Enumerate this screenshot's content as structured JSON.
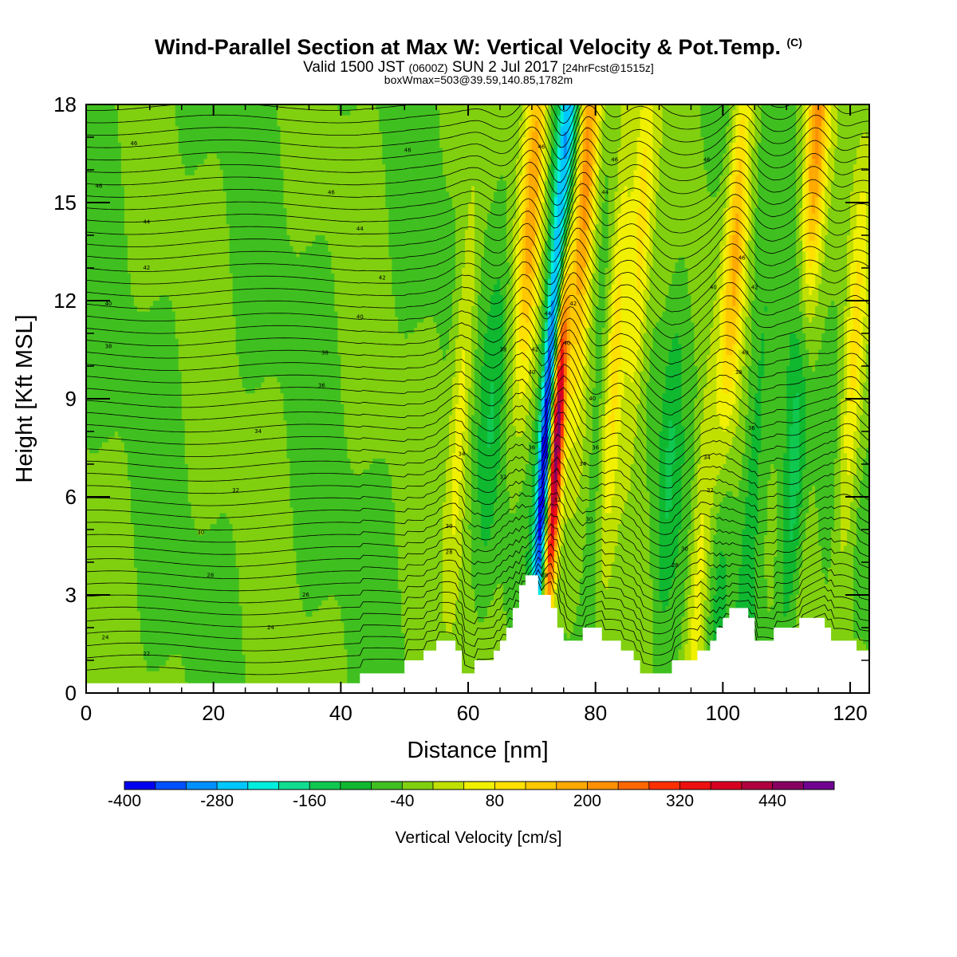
{
  "header": {
    "title": "Wind-Parallel Section at Max W: Vertical Velocity & Pot.Temp.",
    "title_mark": "(C)",
    "valid_prefix": "Valid 1500 JST",
    "valid_utc": "(0600Z)",
    "valid_date": "SUN 2 Jul 2017",
    "valid_fcst": "[24hrFcst@1515z]",
    "box_info": "boxWmax=503@39.59,140.85,1782m"
  },
  "chart_data": {
    "type": "heatmap",
    "xlabel": "Distance [nm]",
    "ylabel": "Height [Kft MSL]",
    "xlim": [
      0,
      123
    ],
    "ylim": [
      0,
      18
    ],
    "x_ticks": [
      "0",
      "20",
      "40",
      "60",
      "80",
      "100",
      "120"
    ],
    "y_ticks": [
      "0",
      "3",
      "6",
      "9",
      "12",
      "15",
      "18"
    ],
    "colorbar": {
      "label": "Vertical Velocity [cm/s]",
      "tick_labels": [
        "-400",
        "-280",
        "-160",
        "-40",
        "80",
        "200",
        "320",
        "440"
      ],
      "levels": [
        -400,
        -360,
        -320,
        -280,
        -240,
        -200,
        -160,
        -120,
        -80,
        -40,
        0,
        40,
        80,
        120,
        160,
        200,
        240,
        280,
        320,
        360,
        400,
        440,
        480,
        520
      ],
      "colors": [
        "#0000f0",
        "#0050ff",
        "#0090ff",
        "#00c8ff",
        "#00eedd",
        "#10dd90",
        "#10c850",
        "#10b830",
        "#40c020",
        "#80d010",
        "#c0e000",
        "#f0f000",
        "#ffe000",
        "#ffc800",
        "#ffaa00",
        "#ff9000",
        "#ff6800",
        "#ff3000",
        "#ee1010",
        "#d80020",
        "#b00040",
        "#880060",
        "#700090"
      ]
    },
    "terrain_nm_kft": [
      [
        0,
        0.3
      ],
      [
        43,
        0.3
      ],
      [
        43,
        0.6
      ],
      [
        50,
        0.6
      ],
      [
        50,
        1.0
      ],
      [
        53,
        1.0
      ],
      [
        53,
        1.3
      ],
      [
        55,
        1.3
      ],
      [
        55,
        1.6
      ],
      [
        58,
        1.6
      ],
      [
        58,
        1.3
      ],
      [
        59,
        1.3
      ],
      [
        59,
        0.6
      ],
      [
        61,
        0.6
      ],
      [
        61,
        1.0
      ],
      [
        64,
        1.0
      ],
      [
        64,
        1.3
      ],
      [
        65,
        1.3
      ],
      [
        65,
        1.6
      ],
      [
        66,
        1.6
      ],
      [
        66,
        2.0
      ],
      [
        67,
        2.0
      ],
      [
        67,
        2.6
      ],
      [
        68,
        2.6
      ],
      [
        68,
        3.3
      ],
      [
        69,
        3.3
      ],
      [
        69,
        3.6
      ],
      [
        71,
        3.6
      ],
      [
        71,
        3.0
      ],
      [
        73,
        3.0
      ],
      [
        73,
        2.6
      ],
      [
        74,
        2.6
      ],
      [
        74,
        2.0
      ],
      [
        75,
        2.0
      ],
      [
        75,
        1.6
      ],
      [
        78,
        1.6
      ],
      [
        78,
        2.0
      ],
      [
        81,
        2.0
      ],
      [
        81,
        1.6
      ],
      [
        84,
        1.6
      ],
      [
        84,
        1.3
      ],
      [
        86,
        1.3
      ],
      [
        86,
        1.0
      ],
      [
        87,
        1.0
      ],
      [
        87,
        0.6
      ],
      [
        92,
        0.6
      ],
      [
        92,
        1.0
      ],
      [
        96,
        1.0
      ],
      [
        96,
        1.3
      ],
      [
        98,
        1.3
      ],
      [
        98,
        1.6
      ],
      [
        99,
        1.6
      ],
      [
        99,
        2.0
      ],
      [
        100,
        2.0
      ],
      [
        100,
        2.3
      ],
      [
        101,
        2.3
      ],
      [
        101,
        2.6
      ],
      [
        104,
        2.6
      ],
      [
        104,
        2.3
      ],
      [
        105,
        2.3
      ],
      [
        105,
        1.6
      ],
      [
        108,
        1.6
      ],
      [
        108,
        2.0
      ],
      [
        112,
        2.0
      ],
      [
        112,
        2.3
      ],
      [
        116,
        2.3
      ],
      [
        116,
        2.0
      ],
      [
        117,
        2.0
      ],
      [
        117,
        1.6
      ],
      [
        121,
        1.6
      ],
      [
        121,
        1.3
      ],
      [
        123,
        1.3
      ],
      [
        123,
        0
      ]
    ],
    "w_field": {
      "background_cm_s": -40,
      "updrafts": [
        {
          "x_nm": 73.8,
          "z_kft": 7.5,
          "peak_cm_s": 500
        },
        {
          "x_nm": 70.2,
          "z_kft": 15.5,
          "peak_cm_s": 170
        },
        {
          "x_nm": 78.5,
          "z_kft": 16.0,
          "peak_cm_s": 240
        },
        {
          "x_nm": 83.0,
          "z_kft": 10.5,
          "peak_cm_s": 140
        },
        {
          "x_nm": 87.0,
          "z_kft": 13.5,
          "peak_cm_s": 110
        },
        {
          "x_nm": 102.0,
          "z_kft": 13.5,
          "peak_cm_s": 170
        },
        {
          "x_nm": 114.5,
          "z_kft": 16.5,
          "peak_cm_s": 210
        },
        {
          "x_nm": 120.5,
          "z_kft": 10.0,
          "peak_cm_s": 110
        },
        {
          "x_nm": 96.0,
          "z_kft": 3.0,
          "peak_cm_s": 80
        },
        {
          "x_nm": 59.0,
          "z_kft": 9.0,
          "peak_cm_s": 80
        }
      ],
      "downdrafts": [
        {
          "x_nm": 72.0,
          "z_kft": 7.0,
          "peak_cm_s": -420
        },
        {
          "x_nm": 75.5,
          "z_kft": 16.5,
          "peak_cm_s": -260
        },
        {
          "x_nm": 111.5,
          "z_kft": 7.5,
          "peak_cm_s": -180
        },
        {
          "x_nm": 64.0,
          "z_kft": 9.0,
          "peak_cm_s": -110
        },
        {
          "x_nm": 80.5,
          "z_kft": 7.0,
          "peak_cm_s": -110
        },
        {
          "x_nm": 91.5,
          "z_kft": 7.0,
          "peak_cm_s": -110
        },
        {
          "x_nm": 100.0,
          "z_kft": 5.0,
          "peak_cm_s": -110
        },
        {
          "x_nm": 104.5,
          "z_kft": 6.0,
          "peak_cm_s": -110
        }
      ]
    },
    "theta_contours": {
      "units": "C",
      "interval": 2,
      "labels": [
        {
          "x_nm": 7.5,
          "z_kft": 16.8,
          "text": "46"
        },
        {
          "x_nm": 2.0,
          "z_kft": 15.5,
          "text": "46"
        },
        {
          "x_nm": 9.5,
          "z_kft": 14.4,
          "text": "44"
        },
        {
          "x_nm": 9.5,
          "z_kft": 13.0,
          "text": "42"
        },
        {
          "x_nm": 3.5,
          "z_kft": 11.9,
          "text": "40"
        },
        {
          "x_nm": 3.5,
          "z_kft": 10.6,
          "text": "38"
        },
        {
          "x_nm": 50.5,
          "z_kft": 16.6,
          "text": "46"
        },
        {
          "x_nm": 38.5,
          "z_kft": 15.3,
          "text": "46"
        },
        {
          "x_nm": 43.0,
          "z_kft": 14.2,
          "text": "44"
        },
        {
          "x_nm": 46.5,
          "z_kft": 12.7,
          "text": "42"
        },
        {
          "x_nm": 43.0,
          "z_kft": 11.5,
          "text": "40"
        },
        {
          "x_nm": 37.5,
          "z_kft": 10.4,
          "text": "38"
        },
        {
          "x_nm": 37.0,
          "z_kft": 9.4,
          "text": "36"
        },
        {
          "x_nm": 27.0,
          "z_kft": 8.0,
          "text": "34"
        },
        {
          "x_nm": 23.5,
          "z_kft": 6.2,
          "text": "32"
        },
        {
          "x_nm": 18.0,
          "z_kft": 4.9,
          "text": "30"
        },
        {
          "x_nm": 19.5,
          "z_kft": 3.6,
          "text": "28"
        },
        {
          "x_nm": 34.5,
          "z_kft": 3.0,
          "text": "26"
        },
        {
          "x_nm": 29.0,
          "z_kft": 2.0,
          "text": "24"
        },
        {
          "x_nm": 3.0,
          "z_kft": 1.7,
          "text": "24"
        },
        {
          "x_nm": 9.5,
          "z_kft": 1.2,
          "text": "22"
        },
        {
          "x_nm": 71.5,
          "z_kft": 16.7,
          "text": "46"
        },
        {
          "x_nm": 83.0,
          "z_kft": 16.3,
          "text": "46"
        },
        {
          "x_nm": 81.5,
          "z_kft": 15.3,
          "text": "44"
        },
        {
          "x_nm": 97.5,
          "z_kft": 16.3,
          "text": "46"
        },
        {
          "x_nm": 103.0,
          "z_kft": 13.3,
          "text": "46"
        },
        {
          "x_nm": 98.5,
          "z_kft": 12.4,
          "text": "40"
        },
        {
          "x_nm": 105.0,
          "z_kft": 12.4,
          "text": "42"
        },
        {
          "x_nm": 76.5,
          "z_kft": 11.9,
          "text": "42"
        },
        {
          "x_nm": 72.5,
          "z_kft": 11.6,
          "text": "44"
        },
        {
          "x_nm": 75.5,
          "z_kft": 10.7,
          "text": "40"
        },
        {
          "x_nm": 65.5,
          "z_kft": 10.5,
          "text": "38"
        },
        {
          "x_nm": 70.5,
          "z_kft": 10.5,
          "text": "42"
        },
        {
          "x_nm": 70.0,
          "z_kft": 9.8,
          "text": "40"
        },
        {
          "x_nm": 79.5,
          "z_kft": 9.0,
          "text": "40"
        },
        {
          "x_nm": 103.5,
          "z_kft": 10.4,
          "text": "40"
        },
        {
          "x_nm": 102.5,
          "z_kft": 9.8,
          "text": "38"
        },
        {
          "x_nm": 104.5,
          "z_kft": 8.1,
          "text": "36"
        },
        {
          "x_nm": 70.0,
          "z_kft": 7.5,
          "text": "36"
        },
        {
          "x_nm": 80.0,
          "z_kft": 7.5,
          "text": "36"
        },
        {
          "x_nm": 59.0,
          "z_kft": 7.3,
          "text": "34"
        },
        {
          "x_nm": 78.0,
          "z_kft": 7.0,
          "text": "34"
        },
        {
          "x_nm": 97.5,
          "z_kft": 7.2,
          "text": "34"
        },
        {
          "x_nm": 65.5,
          "z_kft": 6.6,
          "text": "32"
        },
        {
          "x_nm": 98.0,
          "z_kft": 6.2,
          "text": "32"
        },
        {
          "x_nm": 74.0,
          "z_kft": 5.9,
          "text": "32"
        },
        {
          "x_nm": 79.0,
          "z_kft": 5.3,
          "text": "30"
        },
        {
          "x_nm": 57.0,
          "z_kft": 5.1,
          "text": "30"
        },
        {
          "x_nm": 94.0,
          "z_kft": 4.4,
          "text": "30"
        },
        {
          "x_nm": 57.0,
          "z_kft": 4.3,
          "text": "28"
        },
        {
          "x_nm": 92.5,
          "z_kft": 3.9,
          "text": "28"
        },
        {
          "x_nm": 72.0,
          "z_kft": 3.6,
          "text": "28"
        }
      ]
    }
  }
}
